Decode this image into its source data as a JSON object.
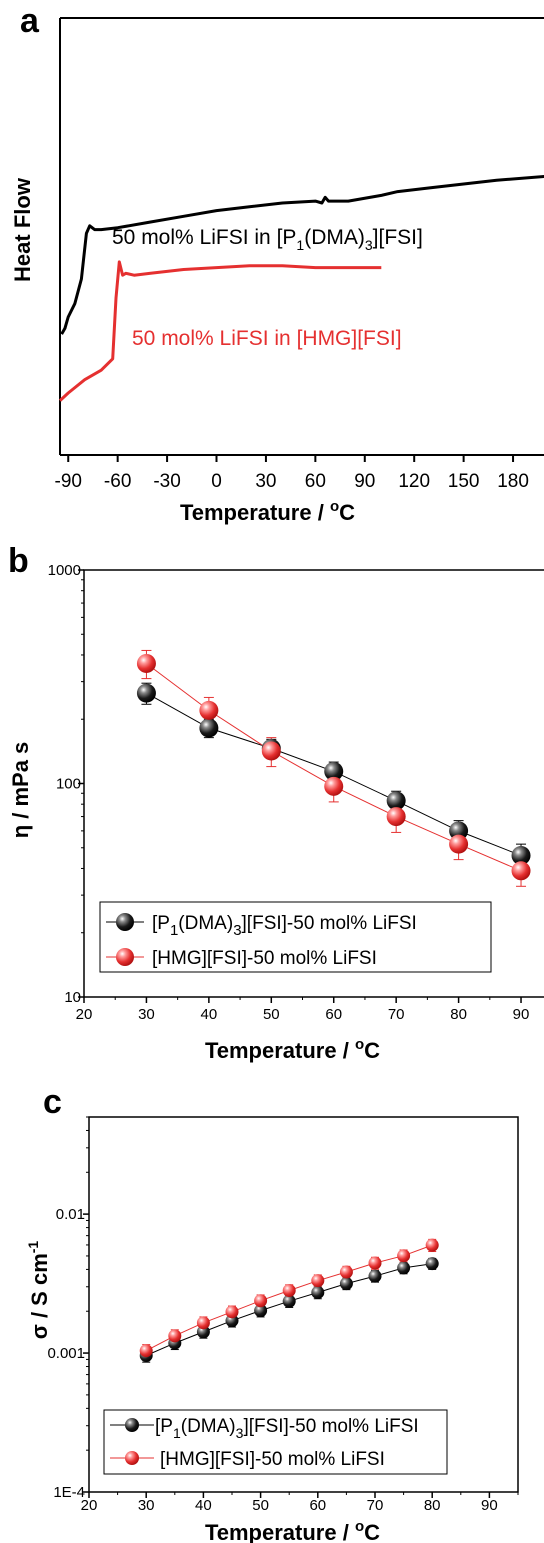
{
  "chart_data": [
    {
      "panel": "a",
      "type": "line",
      "xlabel": "Temperature / ",
      "xlabel_unit": "C",
      "xlabel_degree": "o",
      "ylabel": "Heat Flow",
      "xlim": [
        -95,
        200
      ],
      "xticks": [
        -90,
        -60,
        -30,
        0,
        30,
        60,
        90,
        120,
        150,
        180
      ],
      "series": [
        {
          "label_prefix": "50 mol% LiFSI in [P",
          "label_sub": "1",
          "label_mid": "(DMA)",
          "label_sub2": "3",
          "label_suffix": "][FSI]",
          "color": "#000000",
          "x": [
            -94,
            -92,
            -90,
            -86,
            -82,
            -79,
            -77,
            -74,
            -70,
            -60,
            -40,
            -20,
            0,
            20,
            40,
            60,
            64,
            66,
            68,
            80,
            100,
            110,
            130,
            150,
            170,
            200
          ],
          "y": [
            0.155,
            0.17,
            0.2,
            0.235,
            0.3,
            0.42,
            0.44,
            0.43,
            0.43,
            0.435,
            0.45,
            0.465,
            0.48,
            0.49,
            0.5,
            0.505,
            0.5,
            0.515,
            0.505,
            0.505,
            0.52,
            0.53,
            0.54,
            0.55,
            0.56,
            0.57
          ]
        },
        {
          "label": "50 mol% LiFSI in [HMG][FSI]",
          "color": "#e53030",
          "x": [
            -95,
            -90,
            -80,
            -70,
            -63,
            -61,
            -59,
            -57,
            -55,
            -50,
            -40,
            -20,
            0,
            20,
            40,
            60,
            80,
            100
          ],
          "y": [
            -0.02,
            0.0,
            0.035,
            0.06,
            0.09,
            0.25,
            0.345,
            0.31,
            0.315,
            0.31,
            0.315,
            0.325,
            0.33,
            0.335,
            0.335,
            0.33,
            0.33,
            0.33
          ]
        }
      ]
    },
    {
      "panel": "b",
      "type": "scatter",
      "xlabel": "Temperature / ",
      "xlabel_unit": "C",
      "xlabel_degree": "o",
      "ylabel": "η / mPa s",
      "xlim": [
        20,
        94
      ],
      "ylim": [
        10,
        1000
      ],
      "yscale": "log",
      "xticks": [
        20,
        30,
        40,
        50,
        60,
        70,
        80,
        90
      ],
      "yticks": [
        {
          "value": 10,
          "label": "10"
        },
        {
          "value": 100,
          "label": "100"
        },
        {
          "value": 1000,
          "label": "1000"
        }
      ],
      "legend_position": "lower-left",
      "series": [
        {
          "label_prefix": "[P",
          "label_sub": "1",
          "label_mid": "(DMA)",
          "label_sub2": "3",
          "label_suffix": "][FSI]-50 mol% LiFSI",
          "color": "#000000",
          "x": [
            30,
            40,
            50,
            60,
            70,
            80,
            90
          ],
          "y": [
            265,
            182,
            146,
            114,
            83,
            60,
            46
          ],
          "err": [
            30,
            18,
            15,
            12,
            9,
            7,
            6
          ]
        },
        {
          "label": "[HMG][FSI]-50 mol% LiFSI",
          "color": "#e53030",
          "x": [
            30,
            40,
            50,
            60,
            70,
            80,
            90
          ],
          "y": [
            365,
            220,
            142,
            97,
            70,
            52,
            39
          ],
          "err": [
            55,
            33,
            22,
            15,
            11,
            8,
            6
          ]
        }
      ]
    },
    {
      "panel": "c",
      "type": "scatter",
      "xlabel": "Temperature / ",
      "xlabel_unit": "C",
      "xlabel_degree": "o",
      "ylabel_main": "σ / S cm",
      "ylabel_sup": "-1",
      "xlim": [
        20,
        95
      ],
      "ylim": [
        0.0001,
        0.05
      ],
      "yscale": "log",
      "xticks": [
        20,
        30,
        40,
        50,
        60,
        70,
        80,
        90
      ],
      "yticks": [
        {
          "value": 0.0001,
          "label": "1E-4"
        },
        {
          "value": 0.001,
          "label": "0.001"
        },
        {
          "value": 0.01,
          "label": "0.01"
        }
      ],
      "legend_position": "lower-left",
      "series": [
        {
          "label_prefix": "[P",
          "label_sub": "1",
          "label_mid": "(DMA)",
          "label_sub2": "3",
          "label_suffix": "][FSI]-50 mol% LiFSI",
          "color": "#000000",
          "x": [
            30,
            35,
            40,
            45,
            50,
            55,
            60,
            65,
            70,
            75,
            80
          ],
          "y": [
            0.00096,
            0.00118,
            0.00142,
            0.00171,
            0.00202,
            0.00236,
            0.00273,
            0.00316,
            0.00358,
            0.0041,
            0.0044
          ],
          "err": [
            0.0001,
            0.00012,
            0.00014,
            0.00017,
            0.0002,
            0.00023,
            0.00027,
            0.0003,
            0.00034,
            0.00038,
            0.0004
          ]
        },
        {
          "label": "[HMG][FSI]-50 mol% LiFSI",
          "color": "#e53030",
          "x": [
            30,
            35,
            40,
            45,
            50,
            55,
            60,
            65,
            70,
            75,
            80
          ],
          "y": [
            0.00104,
            0.00133,
            0.00165,
            0.00198,
            0.00238,
            0.00282,
            0.00332,
            0.00383,
            0.00445,
            0.00502,
            0.00598
          ],
          "err": [
            0.00011,
            0.00014,
            0.00017,
            0.0002,
            0.00024,
            0.00028,
            0.00033,
            0.00038,
            0.00044,
            0.0005,
            0.0006
          ]
        }
      ]
    }
  ]
}
